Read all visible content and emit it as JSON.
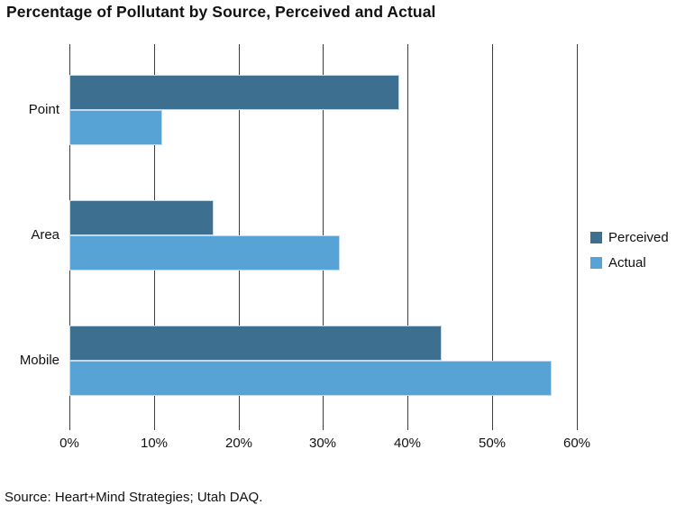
{
  "title": "Percentage of Pollutant by Source, Perceived and Actual",
  "source_note": "Source: Heart+Mind Strategies; Utah DAQ.",
  "colors": {
    "perceived": "#3d6f90",
    "actual": "#58a3d6",
    "bar_stroke": "#c2dbec",
    "gridline": "#3d3d3d",
    "background": "#ffffff",
    "text": "#111111"
  },
  "legend": {
    "items": [
      {
        "label": "Perceived",
        "color": "#3d6f90"
      },
      {
        "label": "Actual",
        "color": "#58a3d6"
      }
    ]
  },
  "chart_data": {
    "type": "bar",
    "orientation": "horizontal",
    "title": "Percentage of Pollutant by Source, Perceived and Actual",
    "categories": [
      "Point",
      "Area",
      "Mobile"
    ],
    "series": [
      {
        "name": "Perceived",
        "color": "#3d6f90",
        "values": [
          39,
          17,
          44
        ]
      },
      {
        "name": "Actual",
        "color": "#58a3d6",
        "values": [
          11,
          32,
          57
        ]
      }
    ],
    "xlabel": "",
    "ylabel": "",
    "xlim": [
      0,
      60
    ],
    "x_tick_interval": 10,
    "x_tick_labels": [
      "0%",
      "10%",
      "20%",
      "30%",
      "40%",
      "50%",
      "60%"
    ],
    "grid": true,
    "grid_axis": "x",
    "legend_position": "right",
    "bars_drawn_over_gridlines": true
  }
}
